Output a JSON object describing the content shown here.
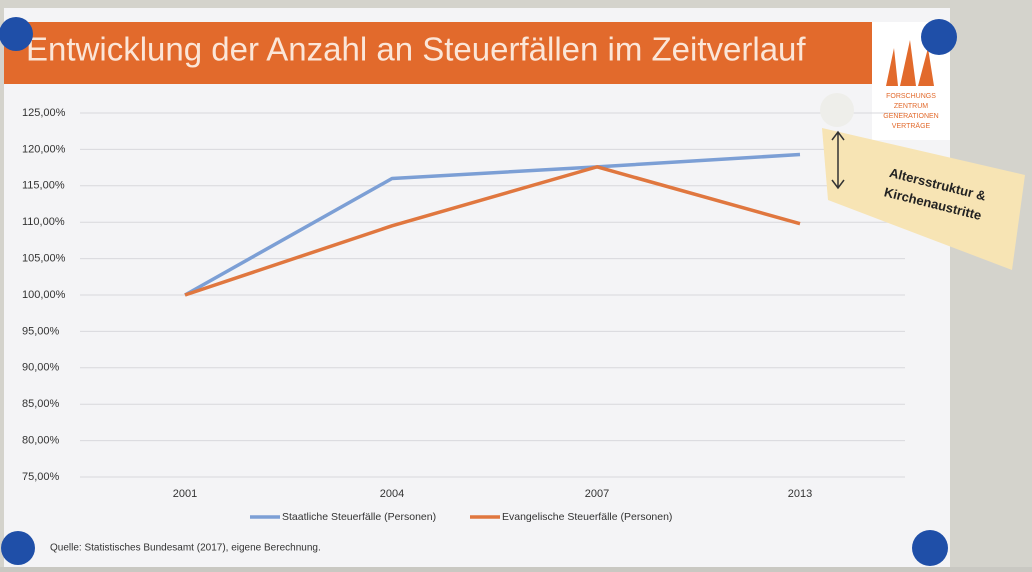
{
  "chart_data": {
    "type": "line",
    "title": "Entwicklung der Anzahl an Steuerfällen im Zeitverlauf",
    "categories": [
      "2001",
      "2004",
      "2007",
      "2013"
    ],
    "series": [
      {
        "name": "Staatliche Steuerfälle (Personen)",
        "color": "#7c9fd5",
        "values": [
          100,
          116,
          117.6,
          119.3
        ]
      },
      {
        "name": "Evangelische Steuerfälle (Personen)",
        "color": "#e0773f",
        "values": [
          100,
          109.5,
          117.6,
          109.8
        ]
      }
    ],
    "ylim": [
      75,
      125
    ],
    "yticks": [
      {
        "value": 75,
        "label": "75,00%"
      },
      {
        "value": 80,
        "label": "80,00%"
      },
      {
        "value": 85,
        "label": "85,00%"
      },
      {
        "value": 90,
        "label": "90,00%"
      },
      {
        "value": 95,
        "label": "95,00%"
      },
      {
        "value": 100,
        "label": "100,00%"
      },
      {
        "value": 105,
        "label": "105,00%"
      },
      {
        "value": 110,
        "label": "110,00%"
      },
      {
        "value": 115,
        "label": "115,00%"
      },
      {
        "value": 120,
        "label": "120,00%"
      },
      {
        "value": 125,
        "label": "125,00%"
      }
    ],
    "grid": true,
    "legend": "bottom",
    "source": "Quelle: Statistisches Bundesamt (2017), eigene Berechnung.",
    "annotation": [
      "Altersstruktur &",
      "Kirchenaustritte"
    ],
    "logo": [
      "FORSCHUNGS",
      "ZENTRUM",
      "GENERATIONEN",
      "VERTRÄGE"
    ]
  }
}
